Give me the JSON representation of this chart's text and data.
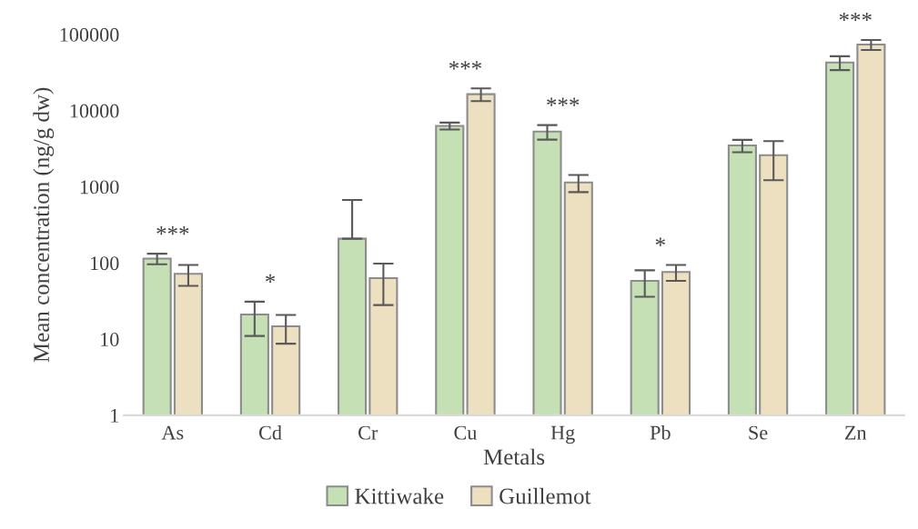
{
  "chart_data": {
    "type": "bar",
    "xlabel": "Metals",
    "ylabel": "Mean concentration (ng/g dw)",
    "categories": [
      "As",
      "Cd",
      "Cr",
      "Cu",
      "Hg",
      "Pb",
      "Se",
      "Zn"
    ],
    "series": [
      {
        "name": "Kittiwake",
        "color": "#c5e0b4",
        "values": [
          114,
          21,
          208,
          6300,
          5300,
          58,
          3480,
          42800
        ],
        "errors": [
          18,
          10,
          [
            208,
            670
          ],
          650,
          1150,
          22,
          640,
          8800
        ]
      },
      {
        "name": "Guillemot",
        "color": "#ede0c0",
        "values": [
          72,
          14.7,
          63,
          16400,
          1140,
          76,
          2600,
          73500
        ],
        "errors": [
          22,
          6,
          35,
          3100,
          290,
          18,
          1380,
          11000
        ]
      }
    ],
    "log": true,
    "ylim": [
      1,
      100000
    ],
    "yticks": [
      1,
      10,
      100,
      1000,
      10000,
      100000
    ],
    "annotations": [
      "***",
      "*",
      "***",
      "***",
      "*",
      "***"
    ],
    "grid": false,
    "legend": "bottom"
  }
}
